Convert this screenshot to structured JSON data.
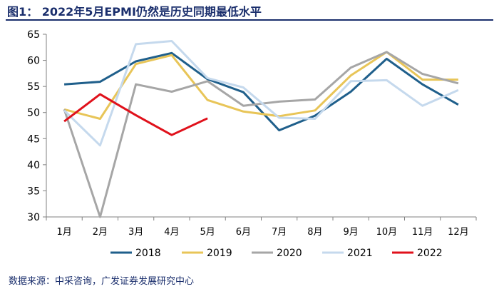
{
  "title": "图1：  2022年5月EPMI仍然是历史同期最低水平",
  "source": "数据来源：中采咨询，广发证券发展研究中心",
  "chart_data": {
    "type": "line",
    "title": "图1：  2022年5月EPMI仍然是历史同期最低水平",
    "xlabel": "",
    "ylabel": "",
    "categories": [
      "1月",
      "2月",
      "3月",
      "4月",
      "5月",
      "6月",
      "7月",
      "8月",
      "9月",
      "10月",
      "11月",
      "12月"
    ],
    "ylim": [
      30,
      65
    ],
    "yticks": [
      30,
      35,
      40,
      45,
      50,
      55,
      60,
      65
    ],
    "grid": false,
    "legend_position": "bottom",
    "series": [
      {
        "name": "2018",
        "color": "#1f5f8b",
        "values": [
          55.4,
          55.9,
          59.8,
          61.4,
          56.4,
          53.9,
          46.6,
          49.4,
          54.0,
          60.3,
          55.4,
          51.5
        ]
      },
      {
        "name": "2019",
        "color": "#e8c558",
        "values": [
          50.6,
          48.8,
          59.3,
          61.0,
          52.4,
          50.2,
          49.3,
          50.4,
          57.1,
          61.6,
          56.3,
          56.3
        ]
      },
      {
        "name": "2020",
        "color": "#a6a6a6",
        "values": [
          50.6,
          30.0,
          55.4,
          54.0,
          56.0,
          51.3,
          52.1,
          52.5,
          58.6,
          61.6,
          57.4,
          55.6
        ]
      },
      {
        "name": "2021",
        "color": "#c5d9ed",
        "values": [
          50.4,
          43.7,
          63.1,
          63.7,
          56.6,
          54.8,
          49.0,
          48.8,
          56.0,
          56.2,
          51.3,
          54.3
        ]
      },
      {
        "name": "2022",
        "color": "#e0111b",
        "values": [
          48.3,
          53.5,
          49.5,
          45.7,
          48.9,
          null,
          null,
          null,
          null,
          null,
          null,
          null
        ]
      }
    ]
  }
}
